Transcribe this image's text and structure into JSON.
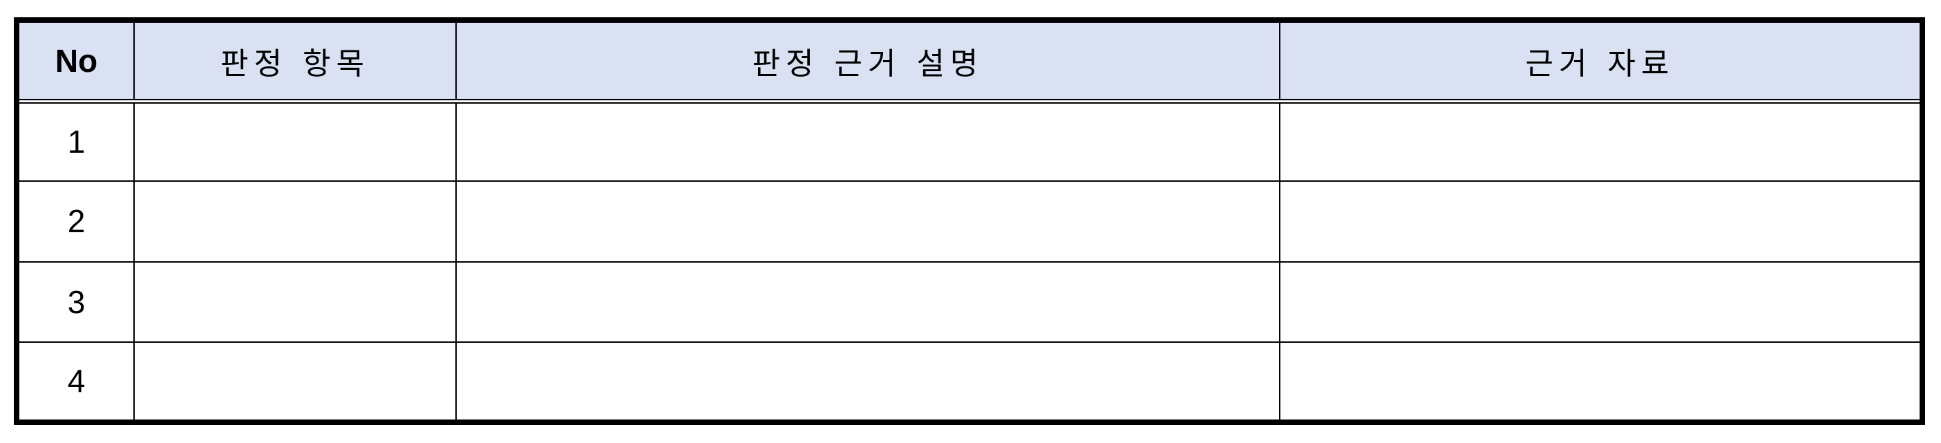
{
  "table": {
    "headers": {
      "no": "No",
      "item": "판정 항목",
      "description": "판정 근거 설명",
      "reference": "근거 자료"
    },
    "rows": [
      {
        "no": "1",
        "item": "",
        "description": "",
        "reference": ""
      },
      {
        "no": "2",
        "item": "",
        "description": "",
        "reference": ""
      },
      {
        "no": "3",
        "item": "",
        "description": "",
        "reference": ""
      },
      {
        "no": "4",
        "item": "",
        "description": "",
        "reference": ""
      }
    ],
    "colors": {
      "header_background": "#d9e1f2",
      "border": "#000000"
    }
  }
}
